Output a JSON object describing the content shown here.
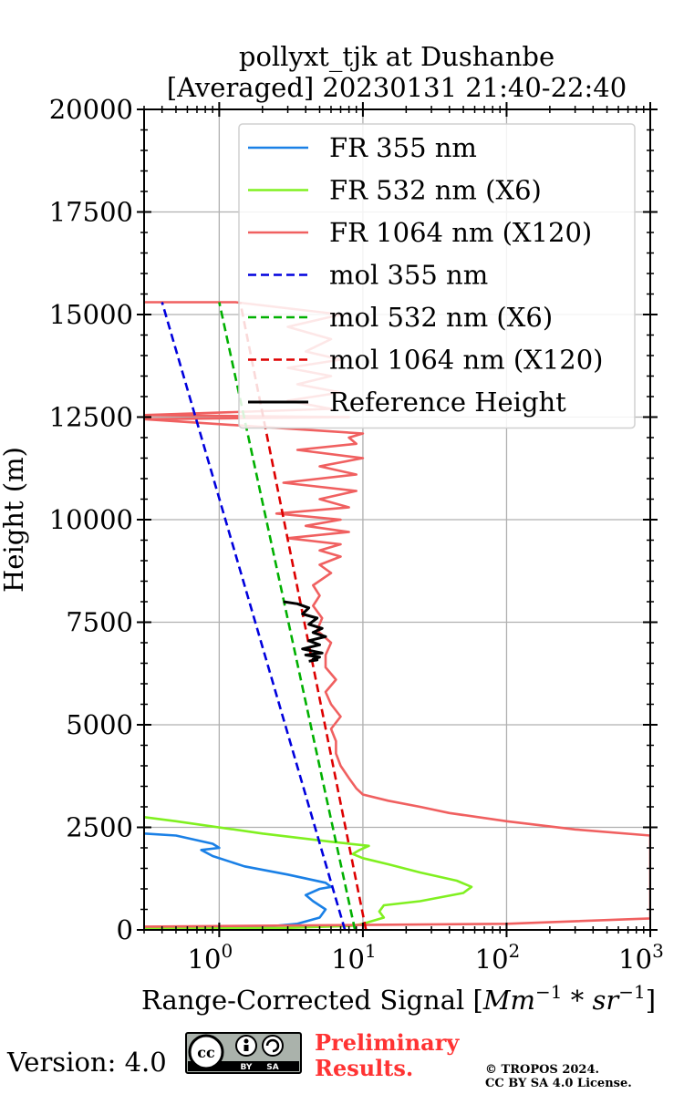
{
  "chart_data": {
    "type": "line",
    "title_line1": "pollyxt_tjk at Dushanbe",
    "title_line2": "[Averaged] 20230131 21:40-22:40",
    "xlabel_prefix": "Range-Corrected Signal [",
    "xlabel_unit_a": "Mm",
    "xlabel_exp_a": "−1",
    "xlabel_mid": " * ",
    "xlabel_unit_b": "sr",
    "xlabel_exp_b": "−1",
    "xlabel_suffix": "]",
    "ylabel": "Height (m)",
    "xscale": "log",
    "xlim": [
      0.3,
      1000
    ],
    "ylim": [
      0,
      20000
    ],
    "grid": true,
    "legend_position": "upper-right",
    "xticks": [
      {
        "value": 1,
        "base": "10",
        "exp": "0"
      },
      {
        "value": 10,
        "base": "10",
        "exp": "1"
      },
      {
        "value": 100,
        "base": "10",
        "exp": "2"
      },
      {
        "value": 1000,
        "base": "10",
        "exp": "3"
      }
    ],
    "yticks": [
      {
        "value": 0,
        "label": "0"
      },
      {
        "value": 2500,
        "label": "2500"
      },
      {
        "value": 5000,
        "label": "5000"
      },
      {
        "value": 7500,
        "label": "7500"
      },
      {
        "value": 10000,
        "label": "10000"
      },
      {
        "value": 12500,
        "label": "12500"
      },
      {
        "value": 15000,
        "label": "15000"
      },
      {
        "value": 17500,
        "label": "17500"
      },
      {
        "value": 20000,
        "label": "20000"
      }
    ],
    "series": [
      {
        "name": "FR 355 nm",
        "color": "#1a80e6",
        "dash": false,
        "x": [
          0.3,
          2,
          3.5,
          5,
          5.5,
          4.5,
          4.0,
          5.0,
          6.0,
          5.5,
          3.0,
          1.5,
          0.9,
          0.75,
          1.0,
          0.9,
          0.5,
          0.3
        ],
        "y": [
          40,
          70,
          150,
          300,
          500,
          700,
          850,
          1000,
          1050,
          1150,
          1350,
          1550,
          1800,
          1950,
          2000,
          2100,
          2300,
          2350
        ]
      },
      {
        "name": "FR 532 nm (X6)",
        "color": "#80f020",
        "dash": false,
        "x": [
          0.3,
          3,
          8.5,
          10,
          14,
          13,
          14,
          25,
          50,
          57,
          45,
          25,
          15,
          10,
          8.5,
          9.5,
          11,
          6,
          2,
          0.5,
          0.3
        ],
        "y": [
          30,
          50,
          100,
          150,
          300,
          450,
          600,
          700,
          900,
          1050,
          1200,
          1400,
          1600,
          1750,
          1850,
          1950,
          2050,
          2150,
          2350,
          2650,
          2750
        ]
      },
      {
        "name": "FR 1064 nm (X120)",
        "color": "#f06060",
        "dash": false,
        "x": [
          0.3,
          100,
          1000,
          1000,
          300,
          100,
          40,
          25,
          15,
          10,
          9,
          8,
          7,
          6.5,
          6.5,
          6,
          7,
          6,
          5.5,
          6.5,
          5.5,
          5.5,
          6,
          4.8,
          5.2,
          4.5,
          5,
          4.5,
          6,
          5,
          7,
          5,
          7,
          3,
          8,
          4,
          7,
          2.5,
          8,
          5,
          9,
          2.8,
          9,
          5,
          10,
          3.5,
          9,
          8,
          10,
          0.3,
          8,
          0.3,
          6,
          3,
          7,
          3.5,
          6,
          3,
          7,
          4,
          6,
          3,
          7,
          1.3,
          0.3
        ],
        "y": [
          80,
          150,
          280,
          2300,
          2450,
          2650,
          2850,
          3000,
          3150,
          3300,
          3450,
          3700,
          4000,
          4300,
          4600,
          4900,
          5200,
          5500,
          5800,
          6100,
          6400,
          6700,
          7000,
          7300,
          7600,
          7900,
          8150,
          8400,
          8700,
          8900,
          9100,
          9250,
          9400,
          9550,
          9700,
          9850,
          10000,
          10150,
          10300,
          10500,
          10700,
          10900,
          11100,
          11300,
          11500,
          11700,
          11850,
          12000,
          12100,
          12450,
          12500,
          12550,
          12700,
          12900,
          13100,
          13300,
          13500,
          13700,
          13900,
          14100,
          14400,
          14700,
          15000,
          15300,
          15300
        ]
      },
      {
        "name": "mol 355 nm",
        "color": "#0000dd",
        "dash": true,
        "x": [
          7.5,
          0.4
        ],
        "y": [
          0,
          15300
        ]
      },
      {
        "name": "mol 532 nm (X6)",
        "color": "#00b000",
        "dash": true,
        "x": [
          8.8,
          1.0
        ],
        "y": [
          0,
          15300
        ]
      },
      {
        "name": "mol 1064 nm (X120)",
        "color": "#dd0000",
        "dash": true,
        "x": [
          10.5,
          1.4
        ],
        "y": [
          0,
          15300
        ]
      },
      {
        "name": "Reference Height",
        "color": "#000000",
        "dash": false,
        "x": [
          2.8,
          3.5,
          4.2,
          3.8,
          4.8,
          4.2,
          5.2,
          4.5,
          5.5,
          4.2,
          5.0,
          3.8,
          5.2,
          4.0,
          5.0,
          4.5,
          4.8,
          4.2
        ],
        "y": [
          8000,
          7950,
          7850,
          7700,
          7600,
          7450,
          7350,
          7250,
          7150,
          7050,
          6950,
          6850,
          6750,
          6700,
          6650,
          6600,
          6580,
          6550
        ]
      }
    ]
  },
  "footer": {
    "version_label": "Version: 4.0",
    "license_badge": {
      "cc": "cc",
      "by": "BY",
      "sa": "SA"
    },
    "preliminary_line1": "Preliminary",
    "preliminary_line2": "Results.",
    "copyright_line1": "© TROPOS 2024.",
    "copyright_line2": "CC BY SA 4.0 License."
  }
}
